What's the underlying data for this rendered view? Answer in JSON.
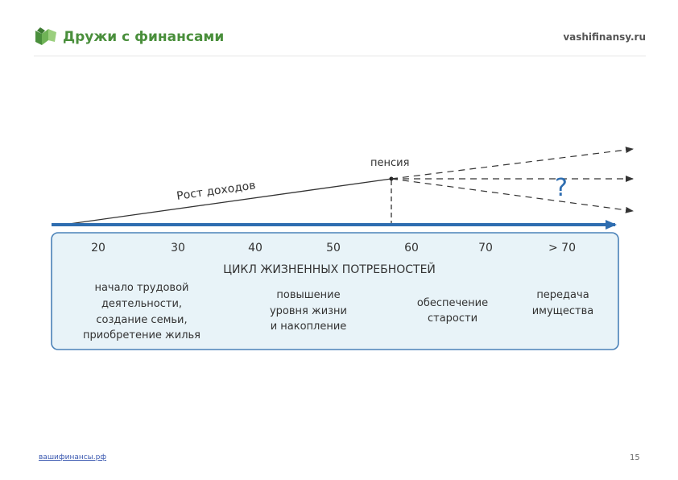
{
  "header": {
    "brand": "Дружи с финансами",
    "site": "vashifinansy.ru",
    "logo_icon": "book-pages-icon",
    "brand_color": "#4a8f3c"
  },
  "diagram": {
    "income_label": "Рост доходов",
    "pension_label": "пенсия",
    "question_mark": "?",
    "arrow_color": "#2e6db0",
    "ages": [
      "20",
      "30",
      "40",
      "50",
      "60",
      "70",
      "> 70"
    ],
    "panel_title": "ЦИКЛ ЖИЗНЕННЫХ ПОТРЕБНОСТЕЙ",
    "stages": [
      {
        "lines": [
          "начало трудовой",
          "деятельности,",
          "создание семьи,",
          "приобретение жилья"
        ]
      },
      {
        "lines": [
          "повышение",
          "уровня жизни",
          "и накопление"
        ]
      },
      {
        "lines": [
          "обеспечение",
          "старости"
        ]
      },
      {
        "lines": [
          "передача",
          "имущества"
        ]
      }
    ]
  },
  "footer": {
    "link": "вашифинансы.рф",
    "page_number": "15"
  }
}
